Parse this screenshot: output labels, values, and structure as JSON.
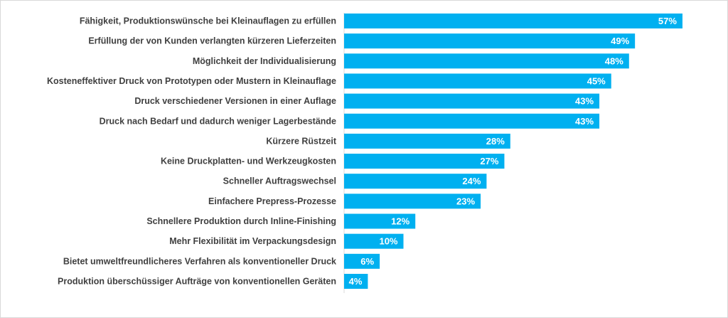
{
  "chart_data": {
    "type": "bar",
    "orientation": "horizontal",
    "categories": [
      "Fähigkeit, Produktionswünsche bei Kleinauflagen zu erfüllen",
      "Erfüllung der von Kunden verlangten kürzeren Lieferzeiten",
      "Möglichkeit der Individualisierung",
      "Kosteneffektiver Druck von Prototypen oder Mustern in Kleinauflage",
      "Druck verschiedener Versionen in einer Auflage",
      "Druck nach Bedarf und dadurch weniger Lagerbestände",
      "Kürzere Rüstzeit",
      "Keine Druckplatten- und Werkzeugkosten",
      "Schneller Auftragswechsel",
      "Einfachere Prepress-Prozesse",
      "Schnellere Produktion durch Inline-Finishing",
      "Mehr Flexibilität im Verpackungsdesign",
      "Bietet umweltfreundlicheres Verfahren als konventioneller Druck",
      "Produktion überschüssiger Aufträge von konventionellen Geräten"
    ],
    "values": [
      57,
      49,
      48,
      45,
      43,
      43,
      28,
      27,
      24,
      23,
      12,
      10,
      6,
      4
    ],
    "value_labels": [
      "57%",
      "49%",
      "48%",
      "45%",
      "43%",
      "43%",
      "28%",
      "27%",
      "24%",
      "23%",
      "12%",
      "10%",
      "6%",
      "4%"
    ],
    "unit": "%",
    "xlim": [
      0,
      64
    ],
    "bar_color": "#00b0f0",
    "label_color": "#404040",
    "value_label_color": "#ffffff",
    "grid": false,
    "legend": "none"
  }
}
